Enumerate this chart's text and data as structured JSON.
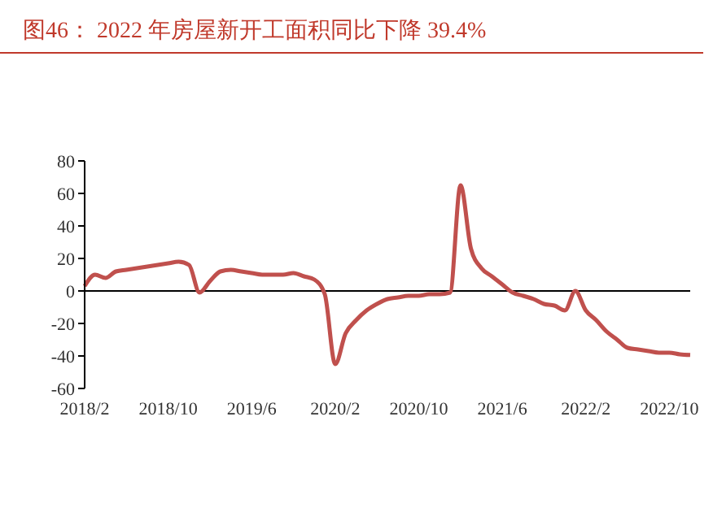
{
  "chart_data": {
    "type": "line",
    "title": "图46：  2022 年房屋新开工面积同比下降 39.4%",
    "categories": [
      "2018/2",
      null,
      null,
      null,
      null,
      null,
      null,
      null,
      "2018/10",
      null,
      null,
      null,
      null,
      null,
      null,
      null,
      "2019/6",
      null,
      null,
      null,
      null,
      null,
      null,
      null,
      "2020/2",
      null,
      null,
      null,
      null,
      null,
      null,
      null,
      "2020/10",
      null,
      null,
      null,
      null,
      null,
      null,
      null,
      "2021/6",
      null,
      null,
      null,
      null,
      null,
      null,
      null,
      "2022/2",
      null,
      null,
      null,
      null,
      null,
      null,
      null,
      "2022/10",
      null,
      null
    ],
    "series": [
      {
        "color": "#c0504d",
        "values": [
          3,
          10,
          8,
          12,
          13,
          14,
          15,
          16,
          17,
          18,
          16,
          -1,
          6,
          12,
          13,
          12,
          11,
          10,
          10,
          10,
          11,
          9,
          7,
          -2,
          -45,
          -26,
          -18,
          -12,
          -8,
          -5,
          -4,
          -3,
          -3,
          -2,
          -2,
          -1,
          65,
          26,
          14,
          9,
          4,
          -1,
          -3,
          -5,
          -8,
          -9,
          -12,
          0,
          -12,
          -18,
          -25,
          -30,
          -35,
          -36,
          -37,
          -38,
          -38,
          -39,
          -39.4
        ]
      }
    ],
    "ylim": [
      -60,
      80
    ],
    "yticks": [
      -60,
      -40,
      -20,
      0,
      20,
      40,
      60,
      80
    ],
    "ref_lines": [
      {
        "axis": "y",
        "value": 0,
        "color": "#000000"
      }
    ],
    "grid": false,
    "legend": false,
    "marker": "none",
    "line_style": "solid"
  }
}
